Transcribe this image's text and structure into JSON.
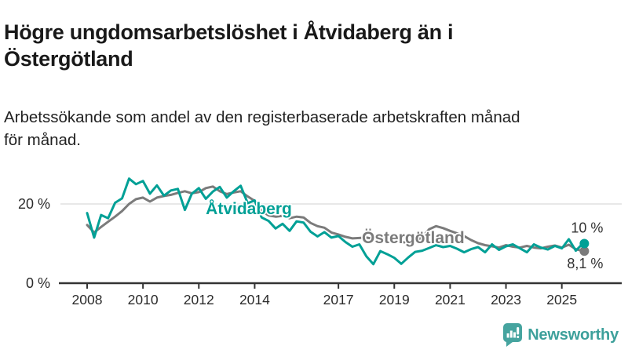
{
  "header": {
    "title_lines": [
      "Högre ungdomsarbetslöshet i Åtvidaberg än i",
      "Östergötland"
    ],
    "subtitle_lines": [
      "Arbetssökande som andel av den registerbaserade arbetskraften månad",
      "för månad."
    ]
  },
  "chart_data": {
    "type": "line",
    "unit": "%",
    "x_start_year": 2008,
    "points_per_year": 4,
    "xlim": [
      2007.6,
      2027.2
    ],
    "ylim": [
      0,
      30
    ],
    "grid": "y-only",
    "x_ticks": [
      {
        "year": 2008,
        "label": "2008"
      },
      {
        "year": 2010,
        "label": "2010"
      },
      {
        "year": 2012,
        "label": "2012"
      },
      {
        "year": 2014,
        "label": "2014"
      },
      {
        "year": 2017,
        "label": "2017"
      },
      {
        "year": 2019,
        "label": "2019"
      },
      {
        "year": 2021,
        "label": "2021"
      },
      {
        "year": 2023,
        "label": "2023"
      },
      {
        "year": 2025,
        "label": "2025"
      }
    ],
    "y_ticks": [
      {
        "value": 0,
        "label": "0 %"
      },
      {
        "value": 20,
        "label": "20 %"
      }
    ],
    "gridline_values": [
      20
    ],
    "series": [
      {
        "name": "Östergötland",
        "color": "#7b7b7b",
        "label": "Östergötland",
        "label_pos": {
          "year": 2017.84,
          "value": 10.1
        },
        "end_label": "8,1 %",
        "end_label_side": "below",
        "values": [
          14.7,
          12.8,
          14.2,
          15.5,
          16.8,
          18.2,
          20.0,
          21.2,
          21.6,
          20.6,
          21.6,
          22.0,
          22.3,
          22.8,
          23.2,
          22.7,
          23.0,
          24.0,
          24.4,
          23.2,
          22.5,
          22.9,
          23.2,
          21.9,
          20.8,
          18.2,
          17.1,
          16.8,
          17.0,
          16.4,
          16.8,
          16.6,
          15.2,
          14.4,
          14.0,
          12.8,
          12.3,
          11.7,
          11.3,
          11.4,
          11.5,
          11.2,
          11.4,
          11.0,
          10.8,
          10.4,
          10.2,
          10.6,
          11.6,
          13.6,
          14.4,
          13.9,
          13.2,
          12.6,
          11.9,
          10.9,
          10.1,
          9.6,
          9.3,
          9.0,
          9.6,
          9.2,
          9.0,
          9.4,
          9.0,
          8.8,
          9.2,
          9.5,
          9.0,
          9.7,
          8.6,
          8.1
        ]
      },
      {
        "name": "Åtvidaberg",
        "color": "#00a096",
        "label": "Åtvidaberg",
        "label_pos": {
          "year": 2012.25,
          "value": 17.4
        },
        "end_label": "10 %",
        "end_label_side": "above",
        "values": [
          17.7,
          11.5,
          17.2,
          16.4,
          20.3,
          21.4,
          26.4,
          25.0,
          25.8,
          22.6,
          24.7,
          22.1,
          23.4,
          23.8,
          18.5,
          22.6,
          24.0,
          21.3,
          23.1,
          24.3,
          21.6,
          23.2,
          24.6,
          20.2,
          20.9,
          16.6,
          15.7,
          13.8,
          15.0,
          13.2,
          15.6,
          15.3,
          13.0,
          11.8,
          12.9,
          11.5,
          11.9,
          10.4,
          9.2,
          9.8,
          6.8,
          4.8,
          8.1,
          7.3,
          6.4,
          4.9,
          6.5,
          7.9,
          8.2,
          8.9,
          9.6,
          9.1,
          9.4,
          8.7,
          7.8,
          8.6,
          9.1,
          7.8,
          9.8,
          8.4,
          9.3,
          9.8,
          8.8,
          7.8,
          9.8,
          9.0,
          8.5,
          9.4,
          8.8,
          11.1,
          8.2,
          10.0
        ]
      }
    ],
    "colors": {
      "axis": "#333333",
      "gridline": "#d9d9d9",
      "tick_label": "#2b2b2b",
      "end_label": "#333333"
    }
  },
  "logo": {
    "text": "Newsworthy",
    "color": "#3da09b",
    "icon_color": "#46a49f",
    "icon": "bar-chart-speech-bubble"
  }
}
